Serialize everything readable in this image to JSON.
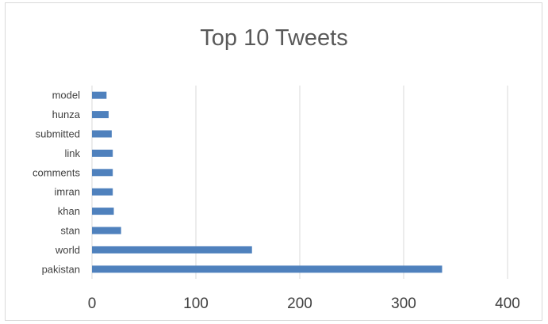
{
  "chart_data": {
    "type": "bar",
    "orientation": "horizontal",
    "title": "Top 10 Tweets",
    "categories": [
      "pakistan",
      "world",
      "stan",
      "khan",
      "imran",
      "comments",
      "link",
      "submitted",
      "hunza",
      "model"
    ],
    "series": [
      {
        "values": [
          337,
          154,
          28,
          21,
          20,
          20,
          20,
          19,
          16,
          14
        ]
      }
    ],
    "xlim": [
      0,
      400
    ],
    "x_ticks": [
      0,
      100,
      200,
      300,
      400
    ],
    "grid": "vertical",
    "legend": "none",
    "bar_color": "#4f81bd",
    "grid_color": "#d9d9d9"
  }
}
